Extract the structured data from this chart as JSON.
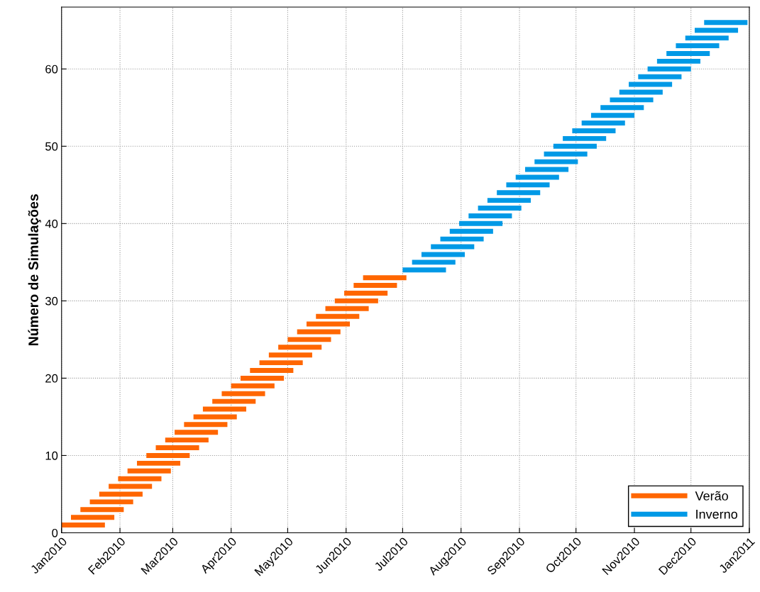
{
  "chart_data": {
    "type": "line",
    "ylabel": "Número de Simulações",
    "xlim": [
      "2010-01-01",
      "2011-01-01"
    ],
    "xticks": [
      {
        "value": "2010-01-01",
        "label": "Jan2010"
      },
      {
        "value": "2010-02-01",
        "label": "Feb2010"
      },
      {
        "value": "2010-03-01",
        "label": "Mar2010"
      },
      {
        "value": "2010-04-01",
        "label": "Apr2010"
      },
      {
        "value": "2010-05-01",
        "label": "May2010"
      },
      {
        "value": "2010-06-01",
        "label": "Jun2010"
      },
      {
        "value": "2010-07-01",
        "label": "Jul2010"
      },
      {
        "value": "2010-08-01",
        "label": "Aug2010"
      },
      {
        "value": "2010-09-01",
        "label": "Sep2010"
      },
      {
        "value": "2010-10-01",
        "label": "Oct2010"
      },
      {
        "value": "2010-11-01",
        "label": "Nov2010"
      },
      {
        "value": "2010-12-01",
        "label": "Dec2010"
      },
      {
        "value": "2011-01-01",
        "label": "Jan2011"
      }
    ],
    "ylim": [
      0,
      68
    ],
    "yticks": [
      0,
      10,
      20,
      30,
      40,
      50,
      60
    ],
    "grid": true,
    "legend": "bottom right",
    "line_style": "solid",
    "marker": "none",
    "series": [
      {
        "name": "Verão",
        "color": "#ff6600",
        "x": [
          "2010-01-01",
          "2010-01-24",
          null,
          "2010-01-06",
          "2010-01-29",
          null,
          "2010-01-11",
          "2010-02-03",
          null,
          "2010-01-16",
          "2010-02-08",
          null,
          "2010-01-21",
          "2010-02-13",
          null,
          "2010-01-26",
          "2010-02-18",
          null,
          "2010-01-31",
          "2010-02-23",
          null,
          "2010-02-05",
          "2010-02-28",
          null,
          "2010-02-10",
          "2010-03-05",
          null,
          "2010-02-15",
          "2010-03-10",
          null,
          "2010-02-20",
          "2010-03-15",
          null,
          "2010-02-25",
          "2010-03-20",
          null,
          "2010-03-02",
          "2010-03-25",
          null,
          "2010-03-07",
          "2010-03-30",
          null,
          "2010-03-12",
          "2010-04-04",
          null,
          "2010-03-17",
          "2010-04-09",
          null,
          "2010-03-22",
          "2010-04-14",
          null,
          "2010-03-27",
          "2010-04-19",
          null,
          "2010-04-01",
          "2010-04-24",
          null,
          "2010-04-06",
          "2010-04-29",
          null,
          "2010-04-11",
          "2010-05-04",
          null,
          "2010-04-16",
          "2010-05-09",
          null,
          "2010-04-21",
          "2010-05-14",
          null,
          "2010-04-26",
          "2010-05-19",
          null,
          "2010-05-01",
          "2010-05-24",
          null,
          "2010-05-06",
          "2010-05-29",
          null,
          "2010-05-11",
          "2010-06-03",
          null,
          "2010-05-16",
          "2010-06-08",
          null,
          "2010-05-21",
          "2010-06-13",
          null,
          "2010-05-26",
          "2010-06-18",
          null,
          "2010-05-31",
          "2010-06-23",
          null,
          "2010-06-05",
          "2010-06-28",
          null,
          "2010-06-10",
          "2010-07-03",
          null
        ],
        "values": [
          1,
          1,
          null,
          2,
          2,
          null,
          3,
          3,
          null,
          4,
          4,
          null,
          5,
          5,
          null,
          6,
          6,
          null,
          7,
          7,
          null,
          8,
          8,
          null,
          9,
          9,
          null,
          10,
          10,
          null,
          11,
          11,
          null,
          12,
          12,
          null,
          13,
          13,
          null,
          14,
          14,
          null,
          15,
          15,
          null,
          16,
          16,
          null,
          17,
          17,
          null,
          18,
          18,
          null,
          19,
          19,
          null,
          20,
          20,
          null,
          21,
          21,
          null,
          22,
          22,
          null,
          23,
          23,
          null,
          24,
          24,
          null,
          25,
          25,
          null,
          26,
          26,
          null,
          27,
          27,
          null,
          28,
          28,
          null,
          29,
          29,
          null,
          30,
          30,
          null,
          31,
          31,
          null,
          32,
          32,
          null,
          33,
          33,
          null
        ]
      },
      {
        "name": "Inverno",
        "color": "#0099e6",
        "x": [
          "2010-07-01",
          "2010-07-24",
          null,
          "2010-07-06",
          "2010-07-29",
          null,
          "2010-07-11",
          "2010-08-03",
          null,
          "2010-07-16",
          "2010-08-08",
          null,
          "2010-07-21",
          "2010-08-13",
          null,
          "2010-07-26",
          "2010-08-18",
          null,
          "2010-07-31",
          "2010-08-23",
          null,
          "2010-08-05",
          "2010-08-28",
          null,
          "2010-08-10",
          "2010-09-02",
          null,
          "2010-08-15",
          "2010-09-07",
          null,
          "2010-08-20",
          "2010-09-12",
          null,
          "2010-08-25",
          "2010-09-17",
          null,
          "2010-08-30",
          "2010-09-22",
          null,
          "2010-09-04",
          "2010-09-27",
          null,
          "2010-09-09",
          "2010-10-02",
          null,
          "2010-09-14",
          "2010-10-07",
          null,
          "2010-09-19",
          "2010-10-12",
          null,
          "2010-09-24",
          "2010-10-17",
          null,
          "2010-09-29",
          "2010-10-22",
          null,
          "2010-10-04",
          "2010-10-27",
          null,
          "2010-10-09",
          "2010-11-01",
          null,
          "2010-10-14",
          "2010-11-06",
          null,
          "2010-10-19",
          "2010-11-11",
          null,
          "2010-10-24",
          "2010-11-16",
          null,
          "2010-10-29",
          "2010-11-21",
          null,
          "2010-11-03",
          "2010-11-26",
          null,
          "2010-11-08",
          "2010-12-01",
          null,
          "2010-11-13",
          "2010-12-06",
          null,
          "2010-11-18",
          "2010-12-11",
          null,
          "2010-11-23",
          "2010-12-16",
          null,
          "2010-11-28",
          "2010-12-21",
          null,
          "2010-12-03",
          "2010-12-26",
          null,
          "2010-12-08",
          "2010-12-31",
          null
        ],
        "values": [
          34,
          34,
          null,
          35,
          35,
          null,
          36,
          36,
          null,
          37,
          37,
          null,
          38,
          38,
          null,
          39,
          39,
          null,
          40,
          40,
          null,
          41,
          41,
          null,
          42,
          42,
          null,
          43,
          43,
          null,
          44,
          44,
          null,
          45,
          45,
          null,
          46,
          46,
          null,
          47,
          47,
          null,
          48,
          48,
          null,
          49,
          49,
          null,
          50,
          50,
          null,
          51,
          51,
          null,
          52,
          52,
          null,
          53,
          53,
          null,
          54,
          54,
          null,
          55,
          55,
          null,
          56,
          56,
          null,
          57,
          57,
          null,
          58,
          58,
          null,
          59,
          59,
          null,
          60,
          60,
          null,
          61,
          61,
          null,
          62,
          62,
          null,
          63,
          63,
          null,
          64,
          64,
          null,
          65,
          65,
          null,
          66,
          66,
          null
        ]
      }
    ]
  }
}
